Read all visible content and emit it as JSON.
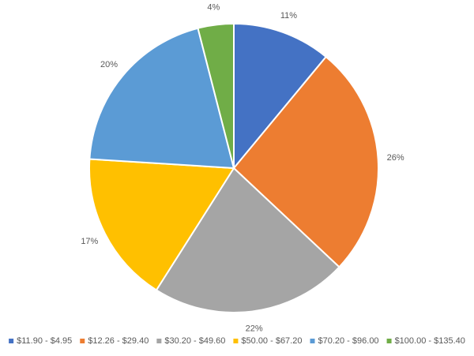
{
  "chart_data": {
    "type": "pie",
    "categories": [
      "$11.90 - $4.95",
      "$12.26 - $29.40",
      "$30.20 - $49.60",
      "$50.00 - $67.20",
      "$70.20 - $96.00",
      "$100.00 - $135.40"
    ],
    "values": [
      11,
      26,
      22,
      17,
      20,
      4
    ],
    "value_labels": [
      "11%",
      "26%",
      "22%",
      "17%",
      "20%",
      "4%"
    ],
    "colors": [
      "#4472c4",
      "#ed7d31",
      "#a5a5a5",
      "#ffc000",
      "#5b9bd5",
      "#70ad47"
    ],
    "legend": "bottom"
  }
}
